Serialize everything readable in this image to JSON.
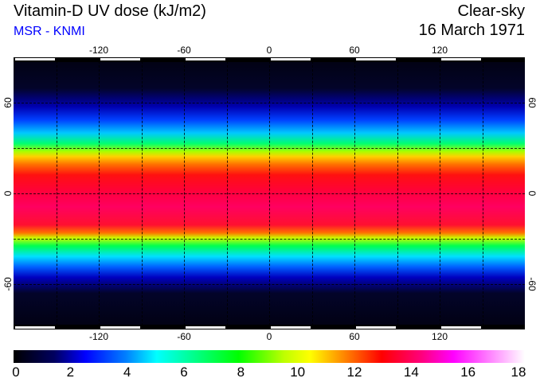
{
  "header": {
    "title": "Vitamin-D UV dose (kJ/m2)",
    "source": "MSR - KNMI",
    "sky_condition": "Clear-sky",
    "date": "16 March 1971"
  },
  "map": {
    "lon_labels": [
      "-120",
      "-60",
      "0",
      "60",
      "120"
    ],
    "lat_labels": [
      "60",
      "0",
      "-60"
    ],
    "lon_range": [
      -180,
      180
    ],
    "lat_range": [
      -90,
      90
    ]
  },
  "colorbar": {
    "labels": [
      "0",
      "2",
      "4",
      "6",
      "8",
      "10",
      "12",
      "14",
      "16",
      "18"
    ],
    "range": [
      0,
      18
    ],
    "colors": [
      "#000000",
      "#0000ff",
      "#00ffff",
      "#00ff00",
      "#ffff00",
      "#ff0000",
      "#ff00ff",
      "#ffffff"
    ]
  }
}
